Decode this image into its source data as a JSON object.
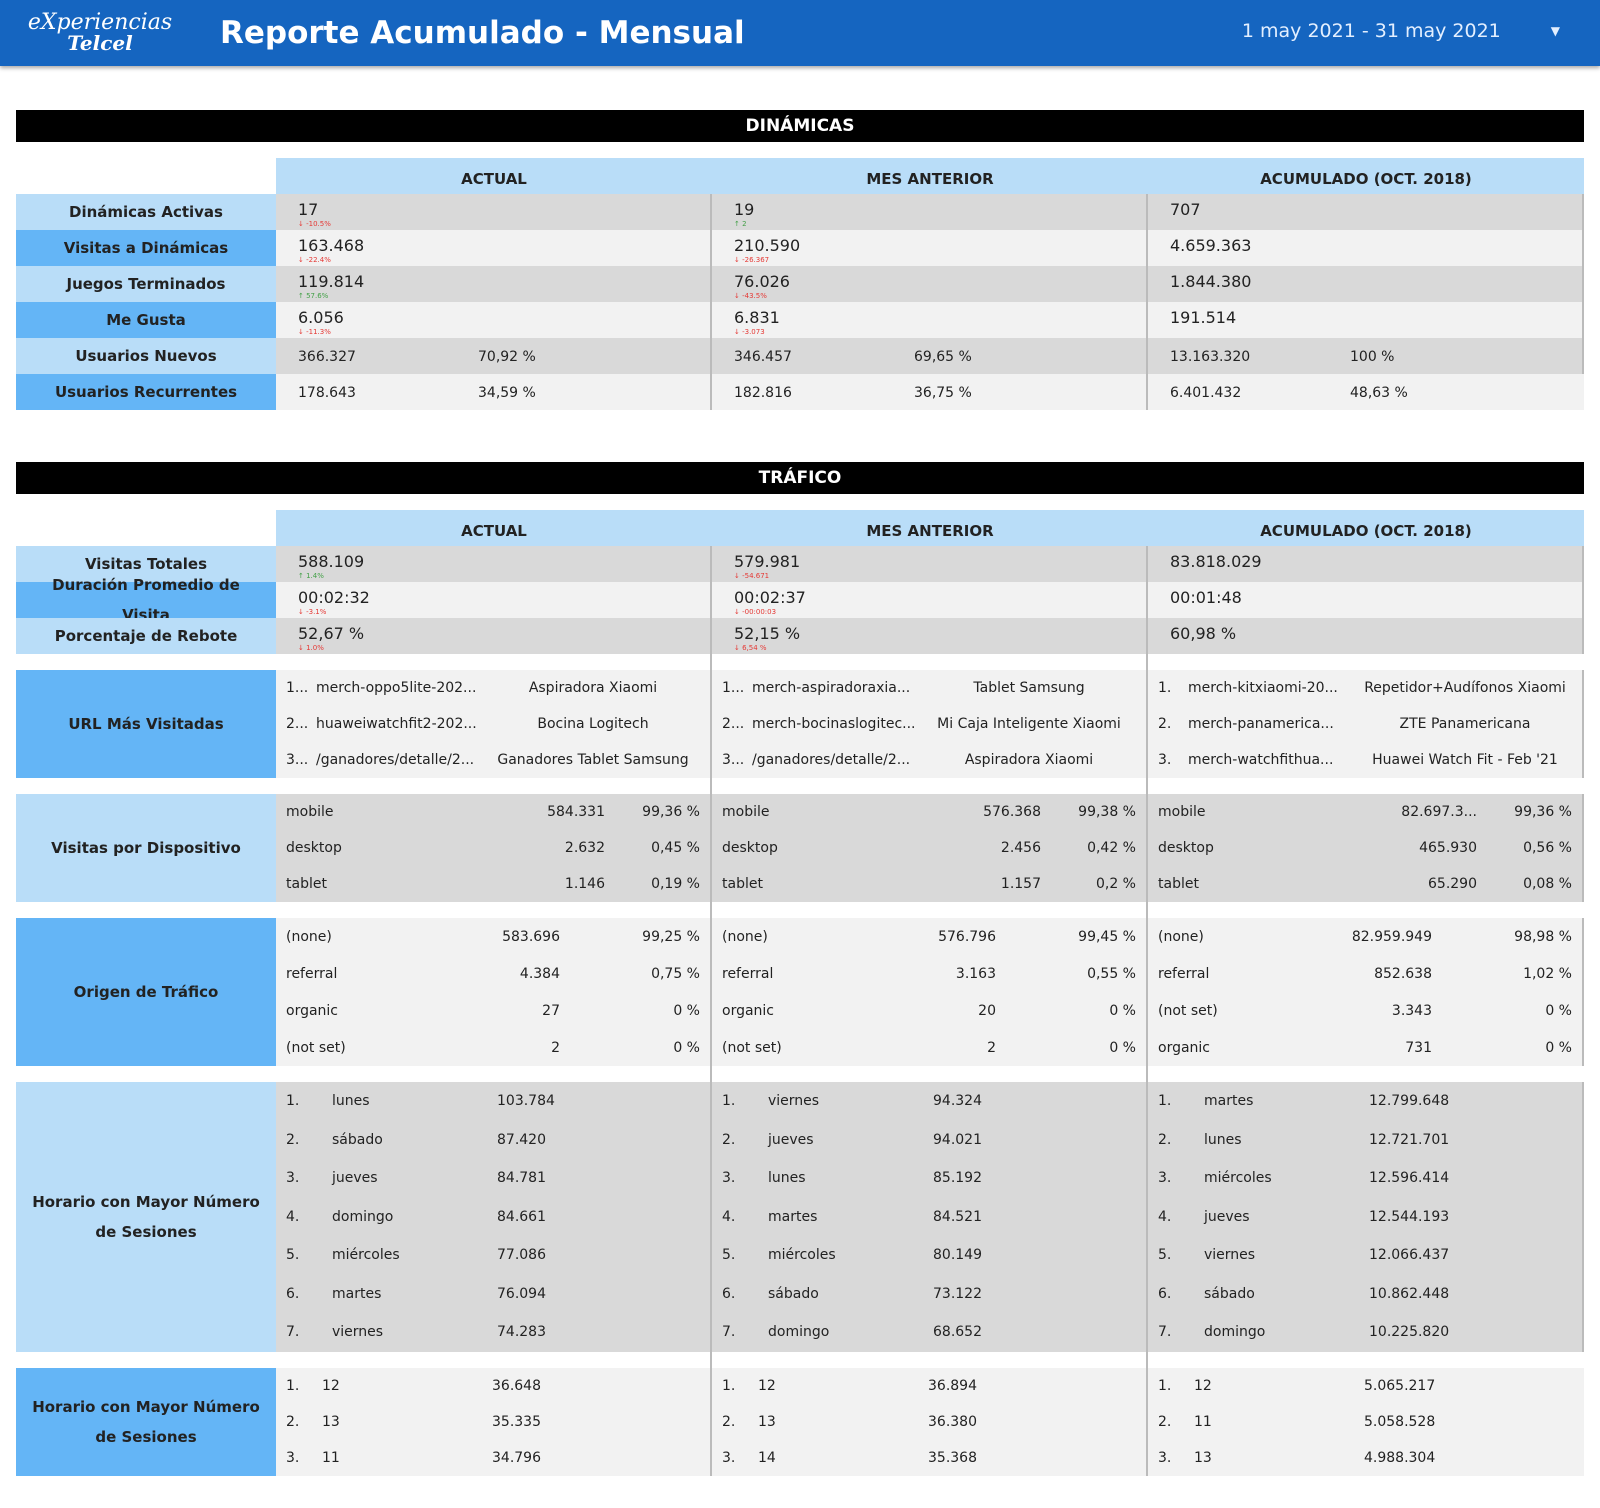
{
  "header": {
    "logo_line1": "eXperiencias",
    "logo_line2": "Telcel",
    "title": "Reporte Acumulado - Mensual",
    "date_range": "1 may 2021 - 31 may 2021",
    "brand_color": "#1565c0"
  },
  "columns": [
    "ACTUAL",
    "MES ANTERIOR",
    "ACUMULADO (OCT. 2018)"
  ],
  "dinamicas": {
    "title": "DINÁMICAS",
    "rows": [
      {
        "label": "Dinámicas Activas",
        "values": [
          {
            "v": "17",
            "d": "-10.5%",
            "dir": "down"
          },
          {
            "v": "19",
            "d": "2",
            "dir": "up"
          },
          {
            "v": "707"
          }
        ]
      },
      {
        "label": "Visitas a Dinámicas",
        "values": [
          {
            "v": "163.468",
            "d": "-22.4%",
            "dir": "down"
          },
          {
            "v": "210.590",
            "d": "-26.367",
            "dir": "down"
          },
          {
            "v": "4.659.363"
          }
        ]
      },
      {
        "label": "Juegos Terminados",
        "values": [
          {
            "v": "119.814",
            "d": "57.6%",
            "dir": "up"
          },
          {
            "v": "76.026",
            "d": "-43.5%",
            "dir": "down"
          },
          {
            "v": "1.844.380"
          }
        ]
      },
      {
        "label": "Me Gusta",
        "values": [
          {
            "v": "6.056",
            "d": "-11.3%",
            "dir": "down"
          },
          {
            "v": "6.831",
            "d": "-3.073",
            "dir": "down"
          },
          {
            "v": "191.514"
          }
        ]
      }
    ],
    "pair_rows": [
      {
        "label": "Usuarios Nuevos",
        "values": [
          [
            "366.327",
            "70,92 %"
          ],
          [
            "346.457",
            "69,65 %"
          ],
          [
            "13.163.320",
            "100 %"
          ]
        ]
      },
      {
        "label": "Usuarios Recurrentes",
        "values": [
          [
            "178.643",
            "34,59 %"
          ],
          [
            "182.816",
            "36,75 %"
          ],
          [
            "6.401.432",
            "48,63 %"
          ]
        ]
      }
    ]
  },
  "trafico": {
    "title": "TRÁFICO",
    "rows": [
      {
        "label": "Visitas Totales",
        "values": [
          {
            "v": "588.109",
            "d": "1.4%",
            "dir": "up"
          },
          {
            "v": "579.981",
            "d": "-54.671",
            "dir": "down"
          },
          {
            "v": "83.818.029"
          }
        ]
      },
      {
        "label": "Duración Promedio de Visita",
        "values": [
          {
            "v": "00:02:32",
            "d": "-3.1%",
            "dir": "down"
          },
          {
            "v": "00:02:37",
            "d": "-00:00:03",
            "dir": "down"
          },
          {
            "v": "00:01:48"
          }
        ]
      },
      {
        "label": "Porcentaje de Rebote",
        "values": [
          {
            "v": "52,67 %",
            "d": "1.0%",
            "dir": "down"
          },
          {
            "v": "52,15 %",
            "d": "6,54 %",
            "dir": "down"
          },
          {
            "v": "60,98 %"
          }
        ]
      }
    ],
    "urls": {
      "label": "URL Más Visitadas",
      "cols": [
        [
          [
            "1...",
            "merch-oppo5lite-202...",
            "Aspiradora Xiaomi"
          ],
          [
            "2...",
            "huaweiwatchfit2-202...",
            "Bocina Logitech"
          ],
          [
            "3...",
            "/ganadores/detalle/2...",
            "Ganadores Tablet Samsung"
          ]
        ],
        [
          [
            "1...",
            "merch-aspiradoraxia...",
            "Tablet Samsung"
          ],
          [
            "2...",
            "merch-bocinaslogitec...",
            "Mi Caja Inteligente Xiaomi"
          ],
          [
            "3...",
            "/ganadores/detalle/2...",
            "Aspiradora Xiaomi"
          ]
        ],
        [
          [
            "1.",
            "merch-kitxiaomi-20...",
            "Repetidor+Audífonos Xiaomi"
          ],
          [
            "2.",
            "merch-panamerica...",
            "ZTE Panamericana"
          ],
          [
            "3.",
            "merch-watchfithua...",
            "Huawei Watch Fit - Feb '21"
          ]
        ]
      ]
    },
    "devices": {
      "label": "Visitas por Dispositivo",
      "cols": [
        [
          [
            "mobile",
            "584.331",
            "99,36 %"
          ],
          [
            "desktop",
            "2.632",
            "0,45 %"
          ],
          [
            "tablet",
            "1.146",
            "0,19 %"
          ]
        ],
        [
          [
            "mobile",
            "576.368",
            "99,38 %"
          ],
          [
            "desktop",
            "2.456",
            "0,42 %"
          ],
          [
            "tablet",
            "1.157",
            "0,2 %"
          ]
        ],
        [
          [
            "mobile",
            "82.697.3...",
            "99,36 %"
          ],
          [
            "desktop",
            "465.930",
            "0,56 %"
          ],
          [
            "tablet",
            "65.290",
            "0,08 %"
          ]
        ]
      ]
    },
    "origin": {
      "label": "Origen de Tráfico",
      "cols": [
        [
          [
            "(none)",
            "583.696",
            "99,25 %"
          ],
          [
            "referral",
            "4.384",
            "0,75 %"
          ],
          [
            "organic",
            "27",
            "0 %"
          ],
          [
            "(not set)",
            "2",
            "0 %"
          ]
        ],
        [
          [
            "(none)",
            "576.796",
            "99,45 %"
          ],
          [
            "referral",
            "3.163",
            "0,55 %"
          ],
          [
            "organic",
            "20",
            "0 %"
          ],
          [
            "(not set)",
            "2",
            "0 %"
          ]
        ],
        [
          [
            "(none)",
            "82.959.949",
            "98,98 %"
          ],
          [
            "referral",
            "852.638",
            "1,02 %"
          ],
          [
            "(not set)",
            "3.343",
            "0 %"
          ],
          [
            "organic",
            "731",
            "0 %"
          ]
        ]
      ]
    },
    "days": {
      "label": "Horario con Mayor Número de Sesiones",
      "cols": [
        [
          [
            "1.",
            "lunes",
            "103.784"
          ],
          [
            "2.",
            "sábado",
            "87.420"
          ],
          [
            "3.",
            "jueves",
            "84.781"
          ],
          [
            "4.",
            "domingo",
            "84.661"
          ],
          [
            "5.",
            "miércoles",
            "77.086"
          ],
          [
            "6.",
            "martes",
            "76.094"
          ],
          [
            "7.",
            "viernes",
            "74.283"
          ]
        ],
        [
          [
            "1.",
            "viernes",
            "94.324"
          ],
          [
            "2.",
            "jueves",
            "94.021"
          ],
          [
            "3.",
            "lunes",
            "85.192"
          ],
          [
            "4.",
            "martes",
            "84.521"
          ],
          [
            "5.",
            "miércoles",
            "80.149"
          ],
          [
            "6.",
            "sábado",
            "73.122"
          ],
          [
            "7.",
            "domingo",
            "68.652"
          ]
        ],
        [
          [
            "1.",
            "martes",
            "12.799.648"
          ],
          [
            "2.",
            "lunes",
            "12.721.701"
          ],
          [
            "3.",
            "miércoles",
            "12.596.414"
          ],
          [
            "4.",
            "jueves",
            "12.544.193"
          ],
          [
            "5.",
            "viernes",
            "12.066.437"
          ],
          [
            "6.",
            "sábado",
            "10.862.448"
          ],
          [
            "7.",
            "domingo",
            "10.225.820"
          ]
        ]
      ]
    },
    "hours": {
      "label": "Horario con Mayor Número de Sesiones",
      "cols": [
        [
          [
            "1.",
            "12",
            "36.648"
          ],
          [
            "2.",
            "13",
            "35.335"
          ],
          [
            "3.",
            "11",
            "34.796"
          ]
        ],
        [
          [
            "1.",
            "12",
            "36.894"
          ],
          [
            "2.",
            "13",
            "36.380"
          ],
          [
            "3.",
            "14",
            "35.368"
          ]
        ],
        [
          [
            "1.",
            "12",
            "5.065.217"
          ],
          [
            "2.",
            "11",
            "5.058.528"
          ],
          [
            "3.",
            "13",
            "4.988.304"
          ]
        ]
      ]
    }
  }
}
